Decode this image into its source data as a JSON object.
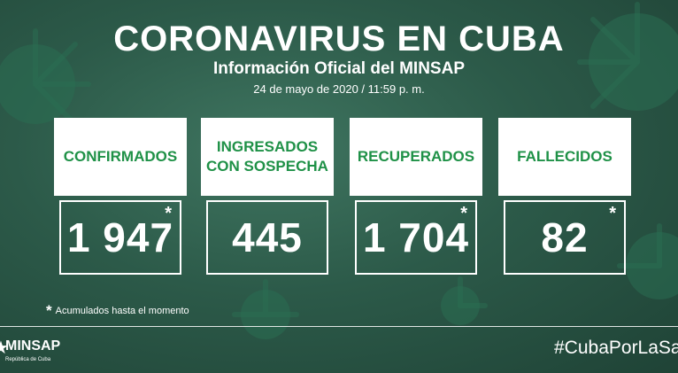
{
  "header": {
    "title": "CORONAVIRUS EN CUBA",
    "subtitle": "Información Oficial del MINSAP",
    "date": "24 de mayo de 2020 / 11:59 p. m."
  },
  "cards": [
    {
      "label": "CONFIRMADOS",
      "value": "1 947",
      "asterisk": "*"
    },
    {
      "label": "INGRESADOS\nCON SOSPECHA",
      "value": "445",
      "asterisk": ""
    },
    {
      "label": "RECUPERADOS",
      "value": "1 704",
      "asterisk": "*"
    },
    {
      "label": "FALLECIDOS",
      "value": "82",
      "asterisk": "*"
    }
  ],
  "footnote": {
    "star": "*",
    "text": "Acumulados hasta el momento"
  },
  "footer": {
    "logo_name": "MINSAP",
    "logo_sub": "República de Cuba",
    "hashtag": "#CubaPorLaSa"
  },
  "colors": {
    "accent": "#1f9147",
    "background": "#2c5a49"
  }
}
